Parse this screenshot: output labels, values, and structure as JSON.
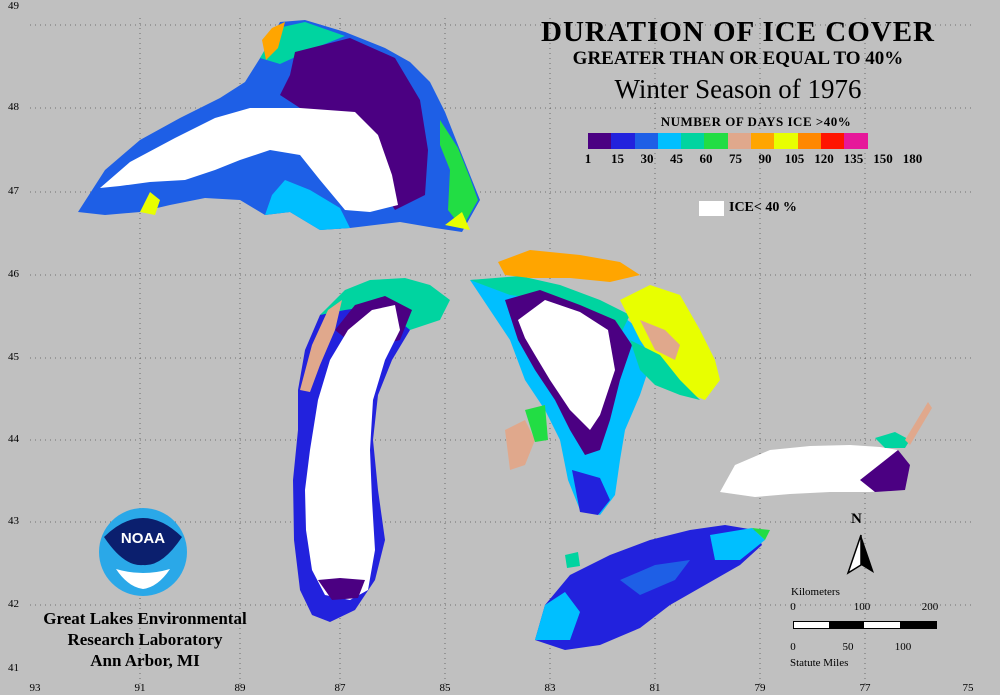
{
  "title": {
    "line1": "DURATION OF ICE COVER",
    "line2": "GREATER THAN OR EQUAL TO 40%",
    "line3": "Winter Season of 1976"
  },
  "legend": {
    "title": "NUMBER OF DAYS ICE >40%",
    "ticks": [
      "1",
      "15",
      "30",
      "45",
      "60",
      "75",
      "90",
      "105",
      "120",
      "135",
      "150",
      "180"
    ],
    "colors": [
      "#4b0082",
      "#2222dd",
      "#1e5fe6",
      "#00bfff",
      "#00d4a0",
      "#22dd44",
      "#e0a88c",
      "#ffa500",
      "#e8ff00",
      "#ff8800",
      "#ff1500",
      "#e6189a"
    ],
    "ice_label": "ICE< 40 %"
  },
  "map": {
    "lat_labels": [
      "49",
      "48",
      "47",
      "46",
      "45",
      "44",
      "43",
      "42",
      "41"
    ],
    "lon_labels": [
      "93",
      "91",
      "89",
      "87",
      "85",
      "83",
      "81",
      "79",
      "77",
      "75"
    ],
    "gridlines": true,
    "north_letter": "N"
  },
  "credit": {
    "line1": "Great Lakes Environmental",
    "line2": "Research Laboratory",
    "line3": "Ann Arbor, MI",
    "logo_text": "NOAA"
  },
  "scale": {
    "km_label": "Kilometers",
    "km_ticks": [
      "0",
      "100",
      "200"
    ],
    "mi_label": "Statute Miles",
    "mi_ticks": [
      "0",
      "50",
      "100"
    ]
  }
}
